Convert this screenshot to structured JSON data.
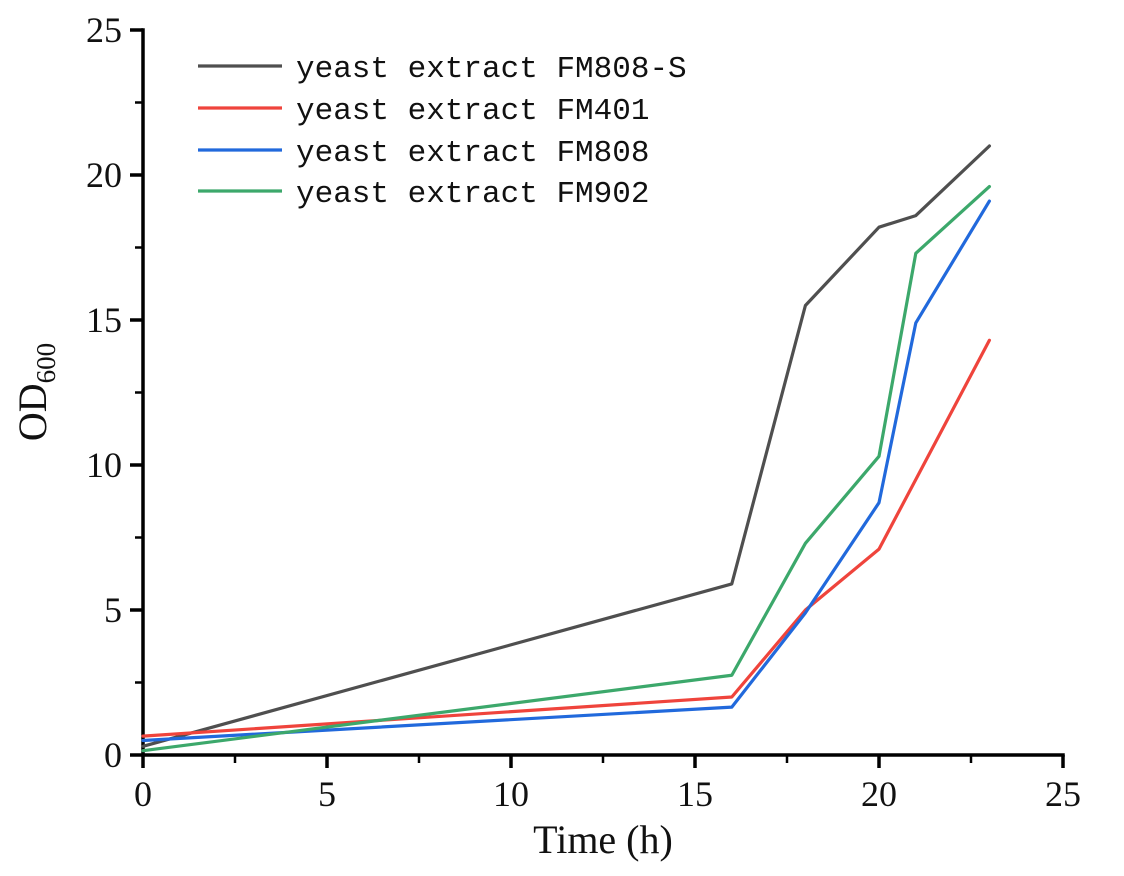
{
  "figure": {
    "background": "#ffffff",
    "axis_color": "#000000",
    "text_color": "#111111"
  },
  "chart_data": {
    "type": "line",
    "title": "",
    "xlabel": "Time (h)",
    "ylabel_base": "OD",
    "ylabel_subscript": "600",
    "xlim": [
      0,
      25
    ],
    "ylim": [
      0,
      25
    ],
    "x_ticks": [
      0,
      5,
      10,
      15,
      20,
      25
    ],
    "y_ticks": [
      0,
      5,
      10,
      15,
      20,
      25
    ],
    "x_minor_ticks": [
      2.5,
      7.5,
      12.5,
      17.5,
      22.5
    ],
    "y_minor_ticks": [
      2.5,
      7.5,
      12.5,
      17.5,
      22.5
    ],
    "grid": false,
    "legend_position": "inside-top-left",
    "series": [
      {
        "name": "yeast extract FM808-S",
        "color": "#4f4f4f",
        "x": [
          0,
          16,
          18,
          20,
          21,
          23
        ],
        "y": [
          0.3,
          5.9,
          15.5,
          18.2,
          18.6,
          21.0
        ]
      },
      {
        "name": "yeast extract FM401",
        "color": "#ef443c",
        "x": [
          0,
          16,
          18,
          20,
          23
        ],
        "y": [
          0.65,
          2.0,
          5.0,
          7.1,
          14.3
        ]
      },
      {
        "name": "yeast extract FM808",
        "color": "#2169dc",
        "x": [
          0,
          16,
          18,
          20,
          21,
          23
        ],
        "y": [
          0.5,
          1.65,
          4.9,
          8.7,
          14.9,
          19.1
        ]
      },
      {
        "name": "yeast extract FM902",
        "color": "#3ca86b",
        "x": [
          0,
          16,
          18,
          20,
          21,
          23
        ],
        "y": [
          0.15,
          2.75,
          7.3,
          10.3,
          17.3,
          19.6
        ]
      }
    ]
  }
}
